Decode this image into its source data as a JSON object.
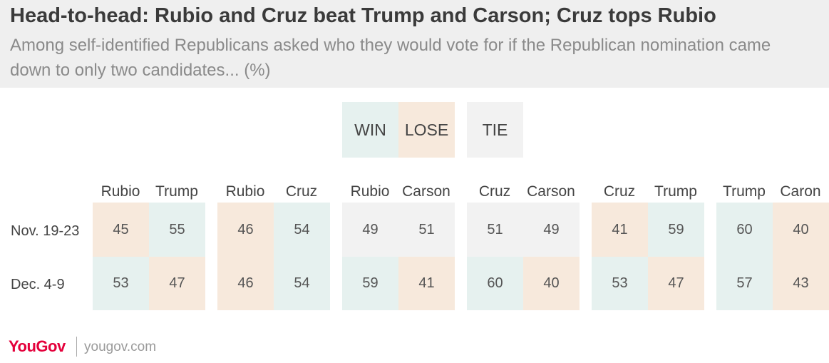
{
  "title": "Head-to-head: Rubio and Cruz beat Trump and Carson; Cruz tops Rubio",
  "subtitle": "Among self-identified Republicans asked who they would vote for if the Republican nomination came down to only two candidates... (%)",
  "legend": [
    {
      "label": "WIN",
      "color": "#e6f1ef"
    },
    {
      "label": "LOSE",
      "color": "#f7e9dc"
    },
    {
      "label": "TIE",
      "color": "#f2f2f2"
    }
  ],
  "chart_data": {
    "type": "table",
    "rows": [
      "Nov. 19-23",
      "Dec. 4-9"
    ],
    "matchups": [
      {
        "candidates": [
          "Rubio",
          "Trump"
        ],
        "values": [
          [
            45,
            55
          ],
          [
            53,
            47
          ]
        ],
        "status": [
          [
            "lose",
            "win"
          ],
          [
            "win",
            "lose"
          ]
        ]
      },
      {
        "candidates": [
          "Rubio",
          "Cruz"
        ],
        "values": [
          [
            46,
            54
          ],
          [
            46,
            54
          ]
        ],
        "status": [
          [
            "lose",
            "win"
          ],
          [
            "lose",
            "win"
          ]
        ]
      },
      {
        "candidates": [
          "Rubio",
          "Carson"
        ],
        "values": [
          [
            49,
            51
          ],
          [
            59,
            41
          ]
        ],
        "status": [
          [
            "tie",
            "tie"
          ],
          [
            "win",
            "lose"
          ]
        ]
      },
      {
        "candidates": [
          "Cruz",
          "Carson"
        ],
        "values": [
          [
            51,
            49
          ],
          [
            60,
            40
          ]
        ],
        "status": [
          [
            "tie",
            "tie"
          ],
          [
            "win",
            "lose"
          ]
        ]
      },
      {
        "candidates": [
          "Cruz",
          "Trump"
        ],
        "values": [
          [
            41,
            59
          ],
          [
            53,
            47
          ]
        ],
        "status": [
          [
            "lose",
            "win"
          ],
          [
            "win",
            "lose"
          ]
        ]
      },
      {
        "candidates": [
          "Trump",
          "Caron"
        ],
        "values": [
          [
            60,
            40
          ],
          [
            57,
            43
          ]
        ],
        "status": [
          [
            "win",
            "lose"
          ],
          [
            "win",
            "lose"
          ]
        ]
      }
    ]
  },
  "footer": {
    "brand": "YouGov",
    "site": "yougov.com"
  }
}
